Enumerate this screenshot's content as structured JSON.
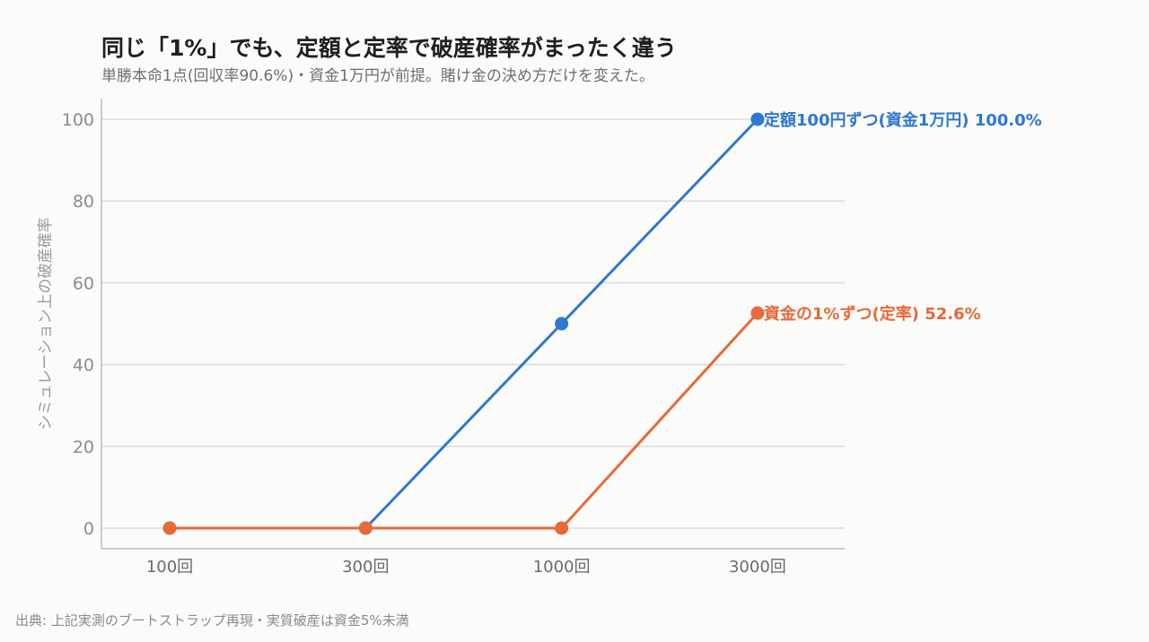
{
  "header": {
    "title": "同じ「1%」でも、定額と定率で破産確率がまったく違う",
    "subtitle": "単勝本命1点(回収率90.6%)・資金1万円が前提。賭け金の決め方だけを変えた。"
  },
  "footer": {
    "source": "出典: 上記実測のブートストラップ再現・実質破産は資金5%未満"
  },
  "chart_data": {
    "type": "line",
    "title": "同じ「1%」でも、定額と定率で破産確率がまったく違う",
    "subtitle": "単勝本命1点(回収率90.6%)・資金1万円が前提。賭け金の決め方だけを変えた。",
    "xlabel": "",
    "ylabel": "シミュレーション上の破産確率",
    "categories": [
      "100回",
      "300回",
      "1000回",
      "3000回"
    ],
    "ylim": [
      0,
      100
    ],
    "yticks": [
      0,
      20,
      40,
      60,
      80,
      100
    ],
    "grid": "horizontal",
    "series": [
      {
        "name": "定額100円ずつ(資金1万円)",
        "values": [
          0,
          0,
          50,
          100
        ],
        "end_label": "定額100円ずつ(資金1万円) 100.0%",
        "color": "#2f78cf"
      },
      {
        "name": "資金の1%ずつ(定率)",
        "values": [
          0,
          0,
          0,
          52.6
        ],
        "end_label": "資金の1%ずつ(定率) 52.6%",
        "color": "#e8693a"
      }
    ]
  }
}
